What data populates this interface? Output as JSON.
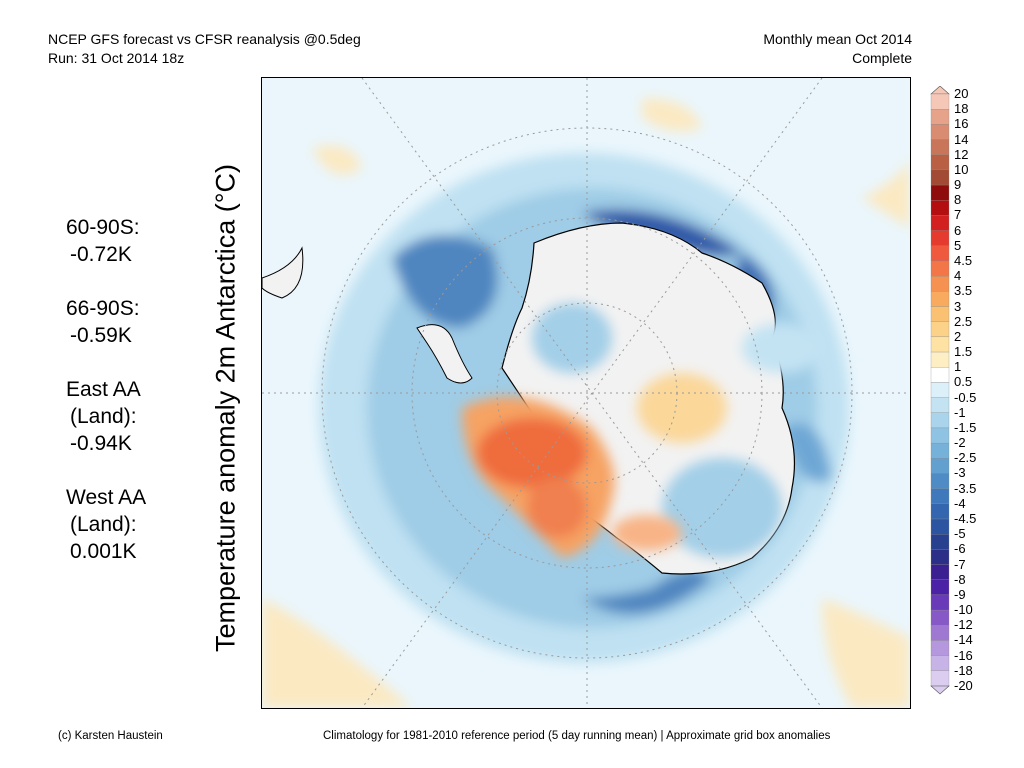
{
  "header": {
    "title_line1": "NCEP GFS forecast vs CFSR reanalysis @0.5deg",
    "title_line2": "Run: 31 Oct 2014 18z",
    "right_line1": "Monthly mean Oct 2014",
    "right_line2": "Complete"
  },
  "stats": [
    {
      "label": "60-90S:",
      "value": "-0.72K"
    },
    {
      "label": "66-90S:",
      "value": "-0.59K"
    },
    {
      "label": "East AA",
      "sub": "(Land):",
      "value": "-0.94K"
    },
    {
      "label": "West AA",
      "sub": "(Land):",
      "value": "0.001K"
    }
  ],
  "ylabel": "Temperature anomaly 2m Antarctica (°C)",
  "colorbar": {
    "ticks": [
      "20",
      "18",
      "16",
      "14",
      "12",
      "10",
      "9",
      "8",
      "7",
      "6",
      "5",
      "4.5",
      "4",
      "3.5",
      "3",
      "2.5",
      "2",
      "1.5",
      "1",
      "0.5",
      "-0.5",
      "-1",
      "-1.5",
      "-2",
      "-2.5",
      "-3",
      "-3.5",
      "-4",
      "-4.5",
      "-5",
      "-6",
      "-7",
      "-8",
      "-9",
      "-10",
      "-12",
      "-14",
      "-16",
      "-18",
      "-20"
    ],
    "colors": [
      "#f4c7b7",
      "#e6a38a",
      "#d98c71",
      "#c97559",
      "#b85f44",
      "#a24a33",
      "#8e0c0c",
      "#b40f10",
      "#d21f1f",
      "#e53b2f",
      "#ef5a3e",
      "#f37648",
      "#f59151",
      "#f8aa5e",
      "#fac173",
      "#fbd288",
      "#fde2a3",
      "#fdeec4",
      "#ffffff",
      "#dcf0fa",
      "#c3e3f3",
      "#a9d4ec",
      "#8fc3e3",
      "#76b1d9",
      "#62a0d0",
      "#4f8cc6",
      "#3f79bb",
      "#3366af",
      "#2b55a1",
      "#27418f",
      "#2b2f87",
      "#3a2091",
      "#4b22a5",
      "#6a3bb8",
      "#8659c6",
      "#9f78d2",
      "#b497dc",
      "#c7b3e6",
      "#dacdef"
    ]
  },
  "footer": {
    "left": "(c) Karsten Haustein",
    "right": "Climatology for 1981-2010 reference period (5 day running mean) | Approximate grid box anomalies"
  }
}
